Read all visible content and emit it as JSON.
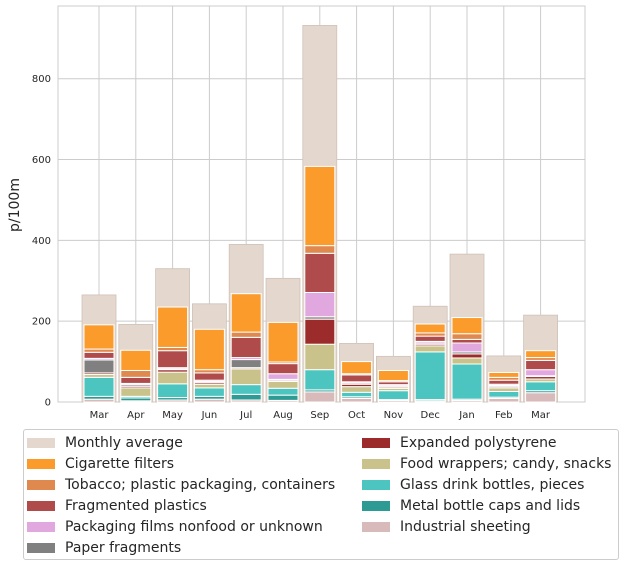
{
  "chart_data": {
    "type": "bar",
    "ylabel": "p/100m",
    "ylim": [
      0,
      980
    ],
    "yticks": [
      0,
      200,
      400,
      600,
      800
    ],
    "grid": true,
    "legend_position": "bottom",
    "categories": [
      "Mar",
      "Apr",
      "May",
      "Jun",
      "Jul",
      "Aug",
      "Sep",
      "Oct",
      "Nov",
      "Dec",
      "Jan",
      "Feb",
      "Mar"
    ],
    "monthly_average": {
      "name": "Monthly average",
      "color": "#e4d7cd",
      "values": [
        265,
        192,
        330,
        243,
        390,
        306,
        932,
        145,
        113,
        237,
        366,
        114,
        215
      ]
    },
    "series": [
      {
        "name": "Industrial sheeting",
        "color": "#d7bab9",
        "values": [
          7,
          3,
          5,
          7,
          5,
          4,
          25,
          9,
          4,
          3,
          4,
          9,
          23
        ]
      },
      {
        "name": "Metal bottle caps and lids",
        "color": "#2e9a94",
        "values": [
          7,
          7,
          6,
          7,
          14,
          13,
          5,
          4,
          2,
          3,
          3,
          3,
          5
        ]
      },
      {
        "name": "Glass drink bottles, pieces",
        "color": "#4cc4bf",
        "values": [
          47,
          4,
          34,
          21,
          24,
          17,
          50,
          11,
          22,
          118,
          87,
          14,
          22
        ]
      },
      {
        "name": "Food wrappers; candy, snacks",
        "color": "#c9c28a",
        "values": [
          7,
          21,
          29,
          9,
          39,
          17,
          63,
          14,
          6,
          15,
          15,
          9,
          7
        ]
      },
      {
        "name": "Expanded polystyrene",
        "color": "#9c2b2b",
        "values": [
          4,
          4,
          6,
          4,
          3,
          3,
          62,
          6,
          3,
          4,
          10,
          3,
          6
        ]
      },
      {
        "name": "Paper fragments",
        "color": "#808080",
        "values": [
          32,
          4,
          2,
          3,
          20,
          2,
          6,
          3,
          3,
          3,
          5,
          3,
          2
        ]
      },
      {
        "name": "Packaging films nonfood or unknown",
        "color": "#e1a8df",
        "values": [
          4,
          3,
          3,
          3,
          5,
          14,
          60,
          3,
          3,
          4,
          22,
          3,
          15
        ]
      },
      {
        "name": "Fragmented plastics",
        "color": "#b04b4b",
        "values": [
          15,
          15,
          42,
          18,
          50,
          25,
          97,
          17,
          7,
          13,
          9,
          10,
          23
        ]
      },
      {
        "name": "Tobacco; plastic packaging, containers",
        "color": "#df894e",
        "values": [
          8,
          17,
          8,
          8,
          13,
          4,
          19,
          3,
          3,
          8,
          14,
          7,
          7
        ]
      },
      {
        "name": "Cigarette filters",
        "color": "#fa9b2b",
        "values": [
          60,
          50,
          100,
          100,
          95,
          98,
          196,
          30,
          25,
          22,
          40,
          12,
          17
        ]
      }
    ]
  },
  "legend": {
    "items": [
      {
        "label": "Monthly average",
        "color": "#e4d7cd"
      },
      {
        "label": "Cigarette filters",
        "color": "#fa9b2b"
      },
      {
        "label": "Tobacco; plastic packaging, containers",
        "color": "#df894e"
      },
      {
        "label": "Fragmented plastics",
        "color": "#b04b4b"
      },
      {
        "label": "Packaging films nonfood or unknown",
        "color": "#e1a8df"
      },
      {
        "label": "Paper fragments",
        "color": "#808080"
      },
      {
        "label": "Expanded polystyrene",
        "color": "#9c2b2b"
      },
      {
        "label": "Food wrappers; candy, snacks",
        "color": "#c9c28a"
      },
      {
        "label": "Glass drink bottles, pieces",
        "color": "#4cc4bf"
      },
      {
        "label": "Metal bottle caps and lids",
        "color": "#2e9a94"
      },
      {
        "label": "Industrial sheeting",
        "color": "#d7bab9"
      }
    ]
  }
}
